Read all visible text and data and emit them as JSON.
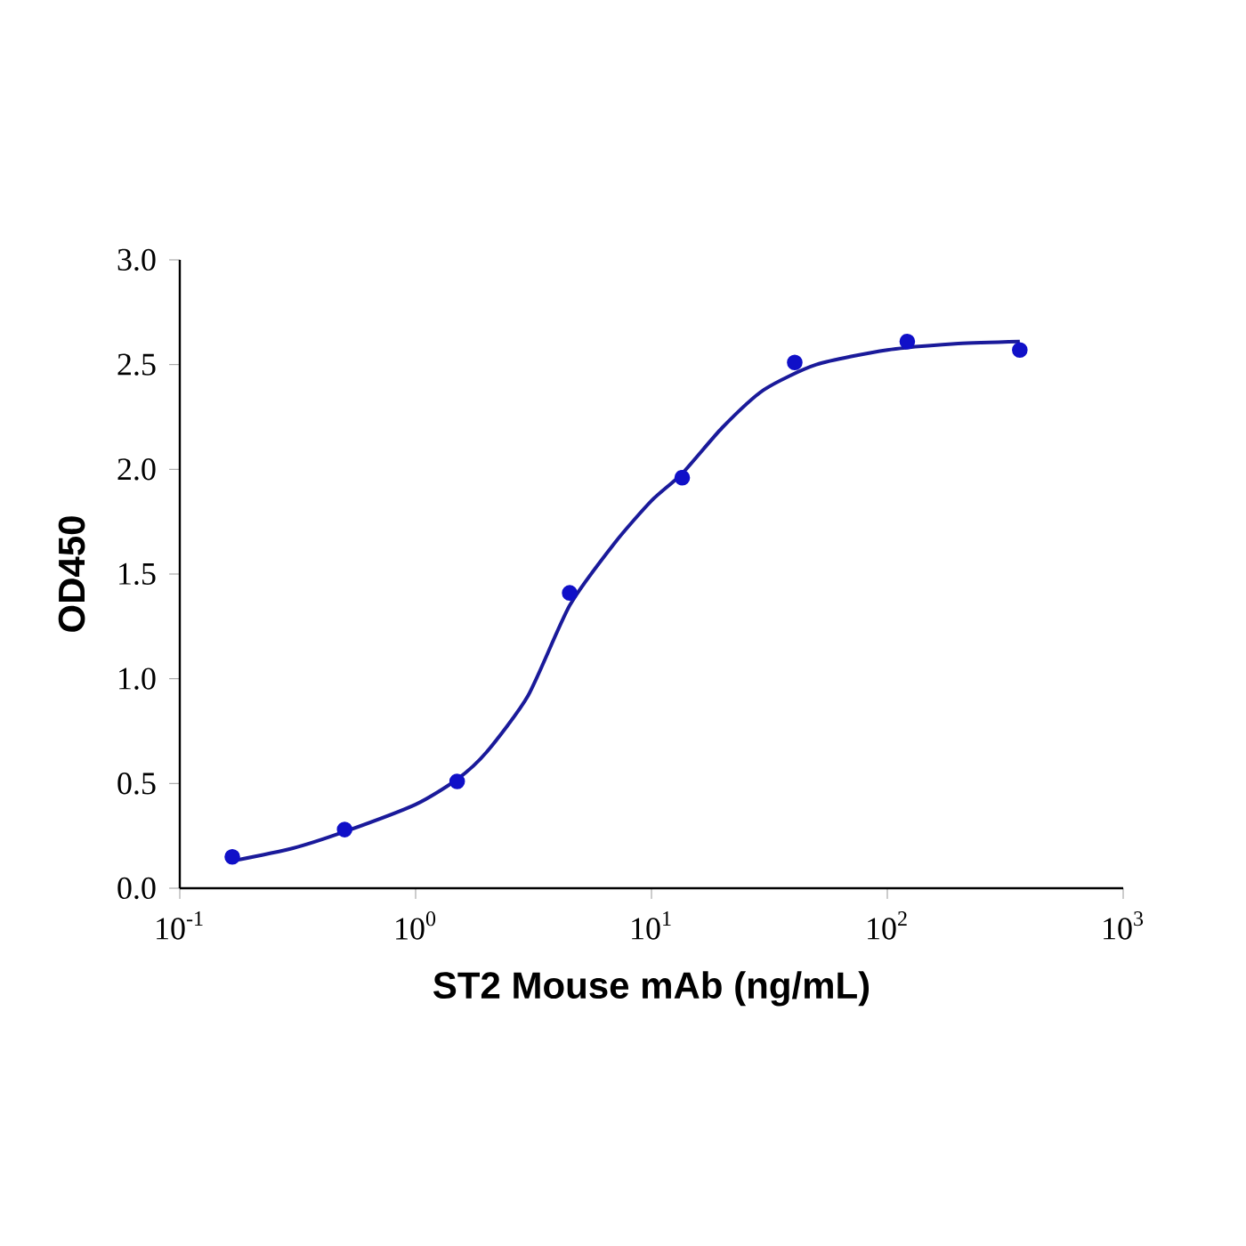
{
  "chart_data": {
    "type": "scatter",
    "xlabel": "ST2 Mouse mAb (ng/mL)",
    "ylabel": "OD450",
    "log": "x",
    "xlim": [
      0.1,
      1000
    ],
    "ylim": [
      0,
      3
    ],
    "xticks": [
      {
        "value": 0.1,
        "label": "10$^{-1}$"
      },
      {
        "value": 1,
        "label": "10$^{0}$"
      },
      {
        "value": 10,
        "label": "10$^{1}$"
      },
      {
        "value": 100,
        "label": "10$^{2}$"
      },
      {
        "value": 1000,
        "label": "10$^{3}$"
      }
    ],
    "yticks": [
      {
        "value": 0,
        "label": "0.0"
      },
      {
        "value": 0.5,
        "label": "0.5"
      },
      {
        "value": 1,
        "label": "1.0"
      },
      {
        "value": 1.5,
        "label": "1.5"
      },
      {
        "value": 2,
        "label": "2.0"
      },
      {
        "value": 2.5,
        "label": "2.5"
      },
      {
        "value": 3,
        "label": "3.0"
      }
    ],
    "series": [
      {
        "marker": "circle",
        "color": "#1010c8",
        "x": [
          0.167,
          0.5,
          1.5,
          4.5,
          13.5,
          40.5,
          121.5,
          364.5
        ],
        "values": [
          0.15,
          0.28,
          0.51,
          1.41,
          1.96,
          2.51,
          2.61,
          2.57
        ]
      },
      {
        "type": "line",
        "marker": "none",
        "color": "#1a1a9a",
        "x": [
          0.167,
          0.3,
          0.5,
          1,
          1.5,
          2,
          3,
          4.5,
          7,
          10,
          13.5,
          20,
          30,
          50,
          100,
          200,
          364.5
        ],
        "values": [
          0.13,
          0.19,
          0.27,
          0.4,
          0.52,
          0.65,
          0.92,
          1.35,
          1.65,
          1.85,
          1.98,
          2.2,
          2.38,
          2.5,
          2.57,
          2.6,
          2.61
        ]
      }
    ]
  }
}
